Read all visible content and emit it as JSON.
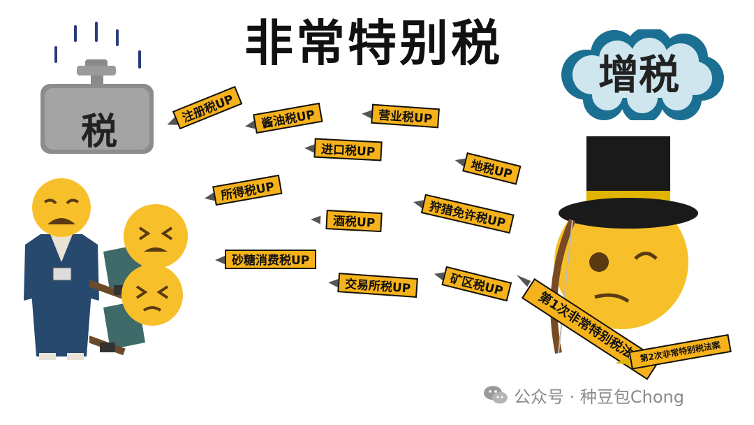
{
  "title": "非常特别税",
  "badge_zouzei": "增税",
  "weight_label": "税",
  "arrows": [
    {
      "label": "注册税UP"
    },
    {
      "label": "酱油税UP"
    },
    {
      "label": "营业税UP"
    },
    {
      "label": "进口税UP"
    },
    {
      "label": "地税UP"
    },
    {
      "label": "所得税UP"
    },
    {
      "label": "狩猎免许税UP"
    },
    {
      "label": "酒税UP"
    },
    {
      "label": "砂糖消费税UP"
    },
    {
      "label": "矿区税UP"
    },
    {
      "label": "交易所税UP"
    }
  ],
  "law_main": "第1次非常特别税法案",
  "law_second": "第2次非常特别税法案",
  "watermark": "公众号 · 种豆包Chong",
  "colors": {
    "label_fill": "#f6b21b",
    "cloud": "#1b6f93",
    "hat": "#111111",
    "hat_band": "#e0b400",
    "emoji": "#f7c02a"
  }
}
